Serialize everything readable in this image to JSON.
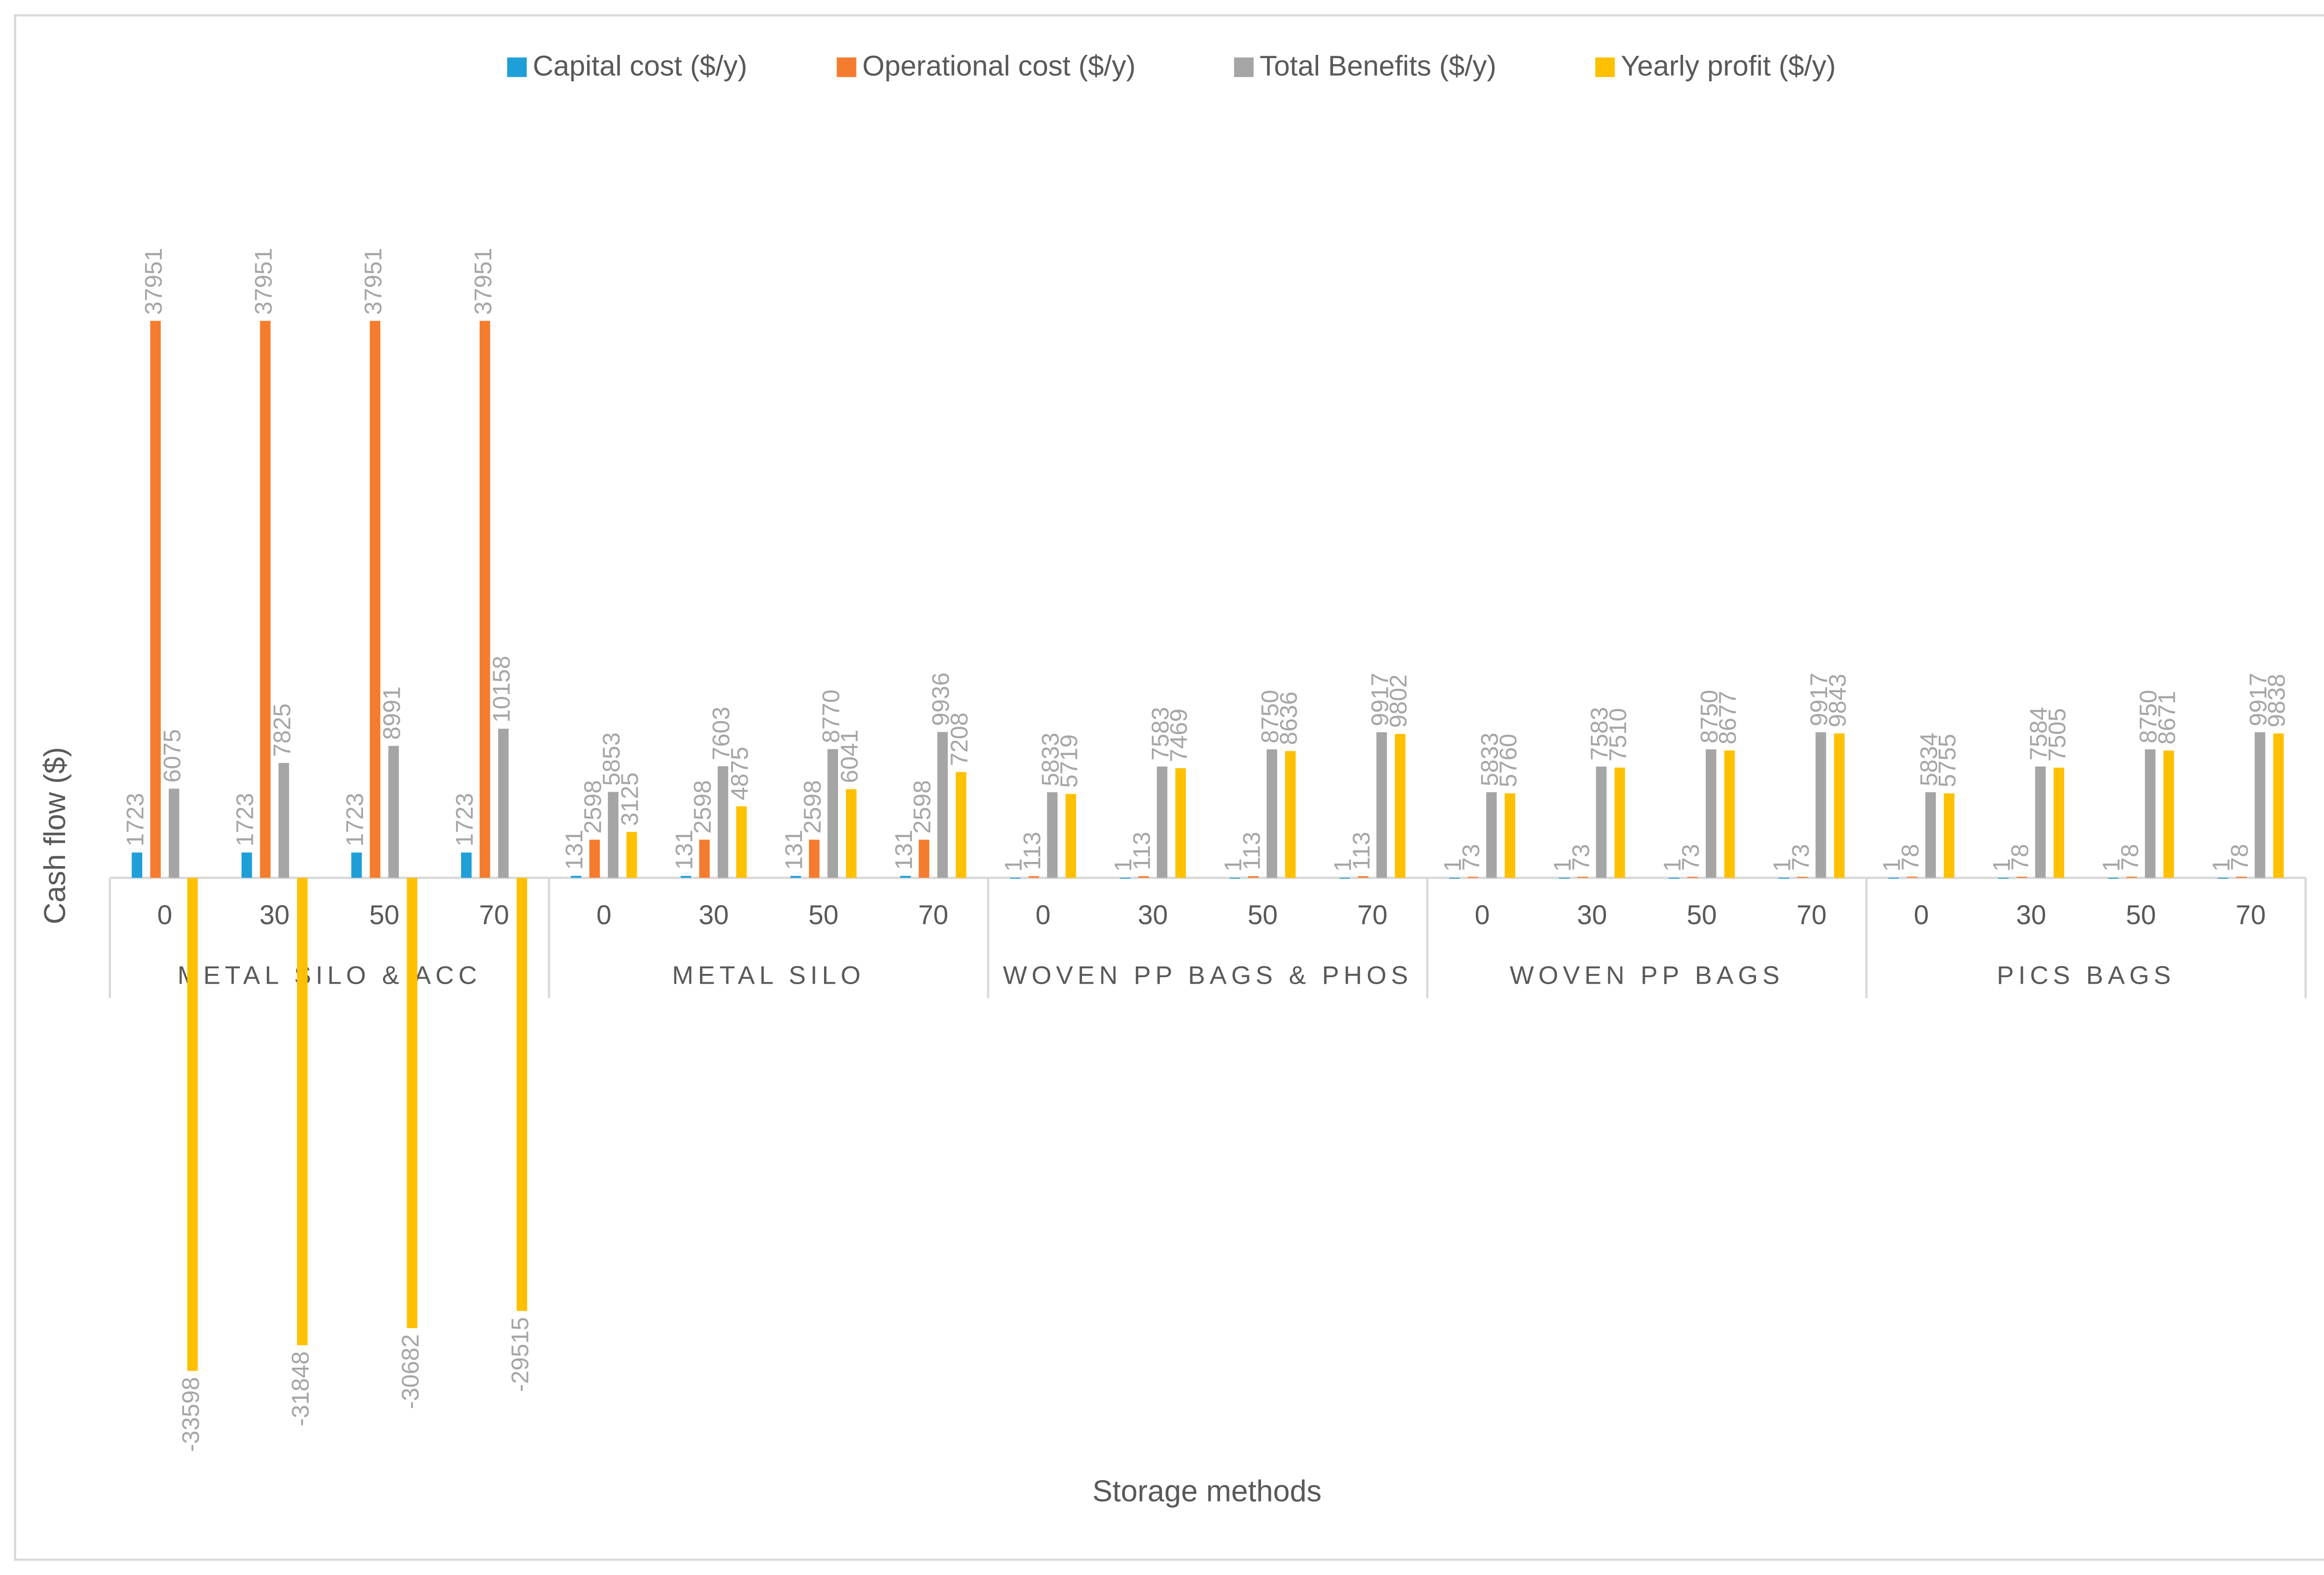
{
  "chart_data": {
    "type": "bar",
    "y_label": "Cash flow ($)",
    "x_label": "Storage methods",
    "ylim": [
      -40000,
      50000
    ],
    "categories": [
      "0",
      "30",
      "50",
      "70",
      "0",
      "30",
      "50",
      "70",
      "0",
      "30",
      "50",
      "70",
      "0",
      "30",
      "50",
      "70",
      "0",
      "30",
      "50",
      "70"
    ],
    "groups": [
      "METAL SILO & ACC",
      "METAL SILO",
      "WOVEN PP BAGS & PHOS",
      "WOVEN PP BAGS",
      "PICS BAGS"
    ],
    "legend": "top",
    "series": [
      {
        "name": "Capital cost ($/y)",
        "color": "#1f9fd8",
        "values": [
          1723,
          1723,
          1723,
          1723,
          131,
          131,
          131,
          131,
          1,
          1,
          1,
          1,
          1,
          1,
          1,
          1,
          1,
          1,
          1,
          1
        ]
      },
      {
        "name": "Operational cost ($/y)",
        "color": "#f57c2e",
        "values": [
          37951,
          37951,
          37951,
          37951,
          2598,
          2598,
          2598,
          2598,
          113,
          113,
          113,
          113,
          73,
          73,
          73,
          73,
          78,
          78,
          78,
          78
        ]
      },
      {
        "name": "Total Benefits ($/y)",
        "color": "#a5a5a5",
        "values": [
          6075,
          7825,
          8991,
          10158,
          5853,
          7603,
          8770,
          9936,
          5833,
          7583,
          8750,
          9917,
          5833,
          7583,
          8750,
          9917,
          5834,
          7584,
          8750,
          9917
        ]
      },
      {
        "name": "Yearly profit ($/y)",
        "color": "#ffc000",
        "values": [
          -33598,
          -31848,
          -30682,
          -29515,
          3125,
          4875,
          6041,
          7208,
          5719,
          7469,
          8636,
          9802,
          5760,
          7510,
          8677,
          9843,
          5755,
          7505,
          8671,
          9838
        ]
      }
    ]
  }
}
